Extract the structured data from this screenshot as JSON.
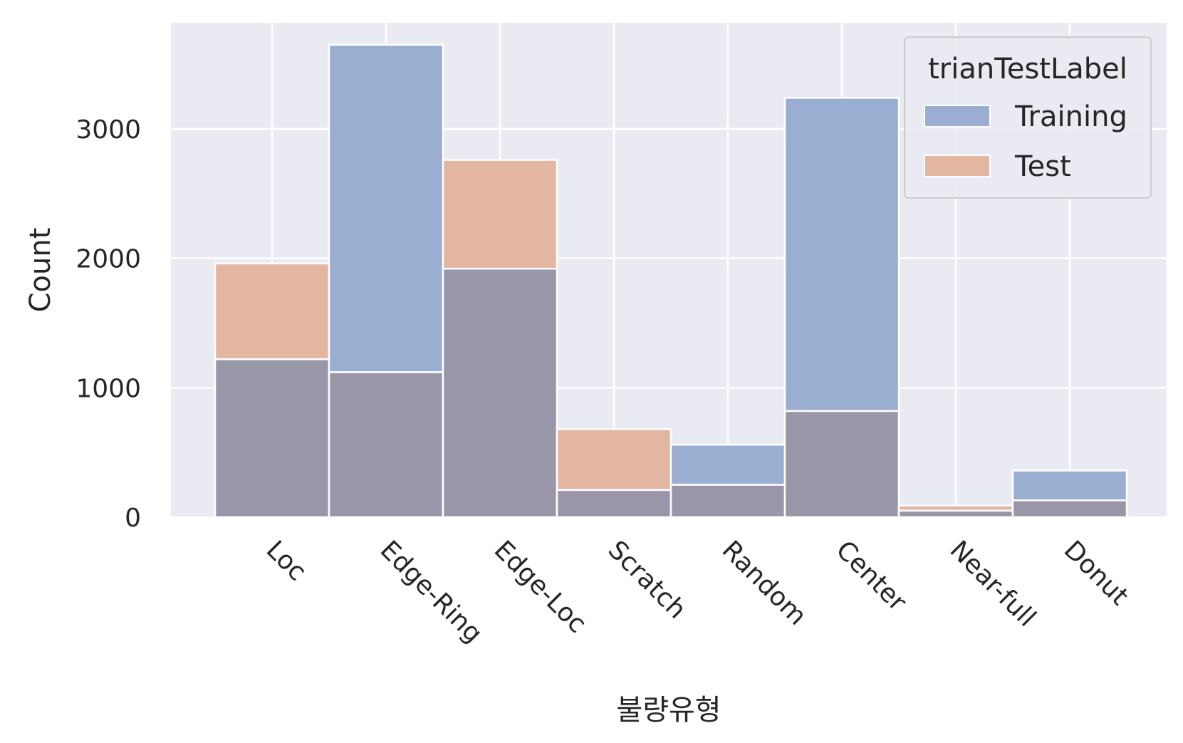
{
  "chart_data": {
    "type": "bar",
    "xlabel": "불량유형",
    "ylabel": "Count",
    "categories": [
      "Loc",
      "Edge-Ring",
      "Edge-Loc",
      "Scratch",
      "Random",
      "Center",
      "Near-full",
      "Donut"
    ],
    "y_ticks": [
      0,
      1000,
      2000,
      3000
    ],
    "ylim": [
      0,
      3820
    ],
    "grid": true,
    "legend_position": "top-right",
    "legend_title": "trianTestLabel",
    "series": [
      {
        "name": "Training",
        "color": "#9aaed1",
        "values": [
          1220,
          3650,
          1920,
          210,
          560,
          3240,
          50,
          360
        ]
      },
      {
        "name": "Test",
        "color": "#e2b6a1",
        "values": [
          1960,
          1120,
          2760,
          680,
          250,
          820,
          90,
          130
        ]
      }
    ],
    "overlap_color": "#9a96aa",
    "background_color": "#eaeaf2"
  }
}
